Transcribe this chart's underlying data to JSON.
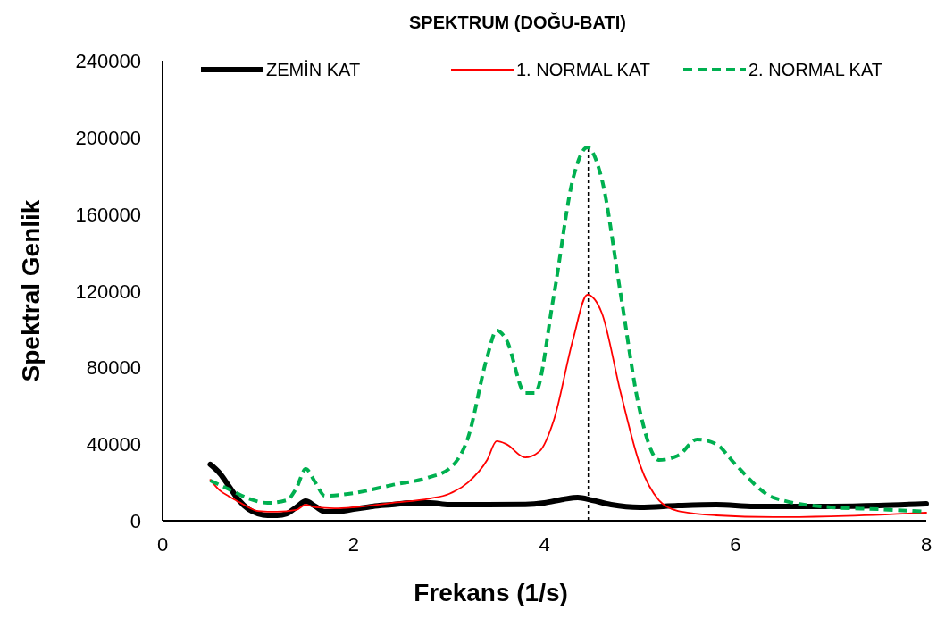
{
  "chart_data": {
    "type": "line",
    "title": "SPEKTRUM (DOĞU-BATI)",
    "xlabel": "Frekans (1/s)",
    "ylabel": "Spektral Genlik",
    "xlim": [
      0,
      8
    ],
    "xticks": [
      0,
      2,
      4,
      6,
      8
    ],
    "ylim": [
      0,
      240000
    ],
    "yticks": [
      0,
      40000,
      80000,
      120000,
      160000,
      200000,
      240000
    ],
    "legend": "top",
    "grid": false,
    "marker": "none",
    "ref_lines": [
      {
        "axis": "x",
        "value": 4.46,
        "color": "#000000",
        "line_style": "dashed"
      }
    ],
    "series": [
      {
        "name": "ZEMİN KAT",
        "color": "#000000",
        "line_style": "solid",
        "x": [
          0.5,
          0.6,
          0.7,
          0.8,
          0.9,
          1.0,
          1.1,
          1.2,
          1.3,
          1.4,
          1.5,
          1.6,
          1.7,
          1.8,
          2.0,
          2.2,
          2.4,
          2.6,
          2.8,
          3.0,
          3.4,
          3.8,
          4.0,
          4.2,
          4.35,
          4.5,
          4.7,
          5.0,
          5.4,
          5.8,
          6.2,
          6.6,
          7.0,
          7.5,
          8.0
        ],
        "values": [
          29400,
          24700,
          17700,
          10700,
          6000,
          3700,
          2800,
          2800,
          3700,
          7000,
          10200,
          7500,
          4700,
          4700,
          6000,
          7500,
          8400,
          9300,
          9300,
          8400,
          8400,
          8500,
          9300,
          11200,
          12100,
          10700,
          8400,
          7000,
          7900,
          8400,
          7500,
          7500,
          7500,
          7900,
          8900
        ]
      },
      {
        "name": "1. NORMAL KAT",
        "color": "#ff0000",
        "line_style": "solid",
        "x": [
          0.5,
          0.6,
          0.7,
          0.8,
          0.9,
          1.0,
          1.2,
          1.4,
          1.5,
          1.6,
          1.8,
          2.0,
          2.4,
          2.8,
          3.0,
          3.2,
          3.4,
          3.5,
          3.6,
          3.8,
          3.95,
          4.1,
          4.3,
          4.45,
          4.6,
          4.8,
          5.0,
          5.2,
          5.4,
          5.8,
          6.4,
          7.0,
          8.0
        ],
        "values": [
          21400,
          15800,
          12600,
          9800,
          7000,
          5100,
          4700,
          5600,
          8400,
          7000,
          6500,
          7000,
          9300,
          11600,
          14000,
          20000,
          31700,
          41500,
          40000,
          33000,
          36300,
          52700,
          94600,
          117900,
          108600,
          66600,
          29400,
          10700,
          5100,
          2800,
          1900,
          2300,
          4200
        ]
      },
      {
        "name": "2. NORMAL KAT",
        "color": "#00b050",
        "line_style": "dashed",
        "x": [
          0.5,
          0.7,
          0.9,
          1.1,
          1.3,
          1.4,
          1.5,
          1.6,
          1.7,
          2.0,
          2.4,
          2.8,
          3.0,
          3.2,
          3.4,
          3.5,
          3.6,
          3.8,
          3.9,
          4.1,
          4.3,
          4.45,
          4.6,
          4.8,
          5.0,
          5.2,
          5.4,
          5.6,
          5.8,
          6.0,
          6.4,
          7.0,
          7.5,
          8.0
        ],
        "values": [
          21000,
          16300,
          11600,
          9300,
          10700,
          16800,
          27000,
          20000,
          13000,
          14400,
          18600,
          22800,
          27000,
          43300,
          85300,
          99300,
          94600,
          66600,
          66600,
          117900,
          178500,
          194800,
          178500,
          117900,
          57300,
          31700,
          34000,
          42400,
          40000,
          29400,
          12100,
          7000,
          6000,
          4700
        ]
      }
    ]
  }
}
